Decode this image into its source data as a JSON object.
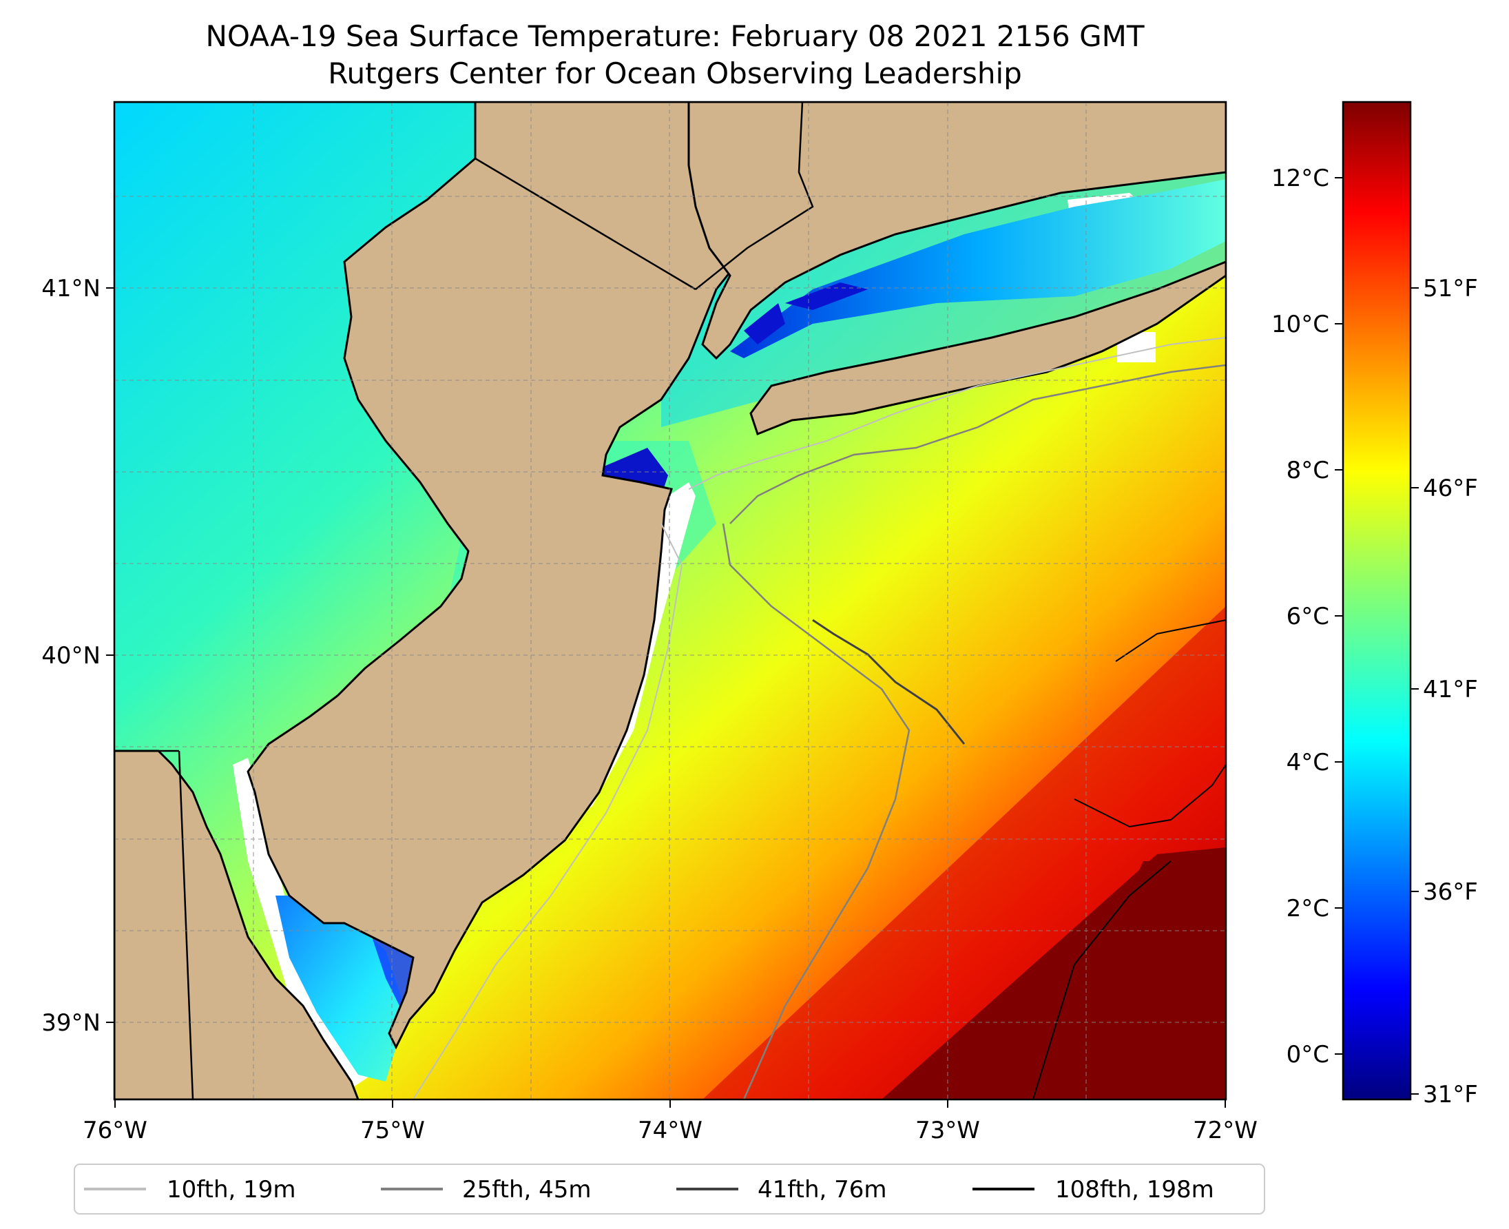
{
  "title": "NOAA-19 Sea Surface Temperature: February 08 2021 2156 GMT",
  "subtitle": "Rutgers Center for Ocean Observing Leadership",
  "map": {
    "lon_range": [
      -76,
      -72
    ],
    "lat_range": [
      38.73,
      41.52
    ],
    "lon_ticks": [
      "76°W",
      "75°W",
      "74°W",
      "73°W",
      "72°W"
    ],
    "lat_ticks": [
      "41°N",
      "40°N",
      "39°N"
    ],
    "grid": "dashed",
    "land_color": "#d2b48c",
    "nodata_color": "#ffffff"
  },
  "colorbar": {
    "colormap": "jet",
    "range_c": [
      -0.6,
      13
    ],
    "celsius_ticks": [
      "12°C",
      "10°C",
      "8°C",
      "6°C",
      "4°C",
      "2°C",
      "0°C"
    ],
    "fahrenheit_ticks": [
      "51°F",
      "46°F",
      "41°F",
      "36°F",
      "31°F"
    ]
  },
  "legend": {
    "placement": "bottom",
    "items": [
      {
        "label": "10fth, 19m",
        "color": "#bfbfbf"
      },
      {
        "label": "25fth, 45m",
        "color": "#808080"
      },
      {
        "label": "41fth, 76m",
        "color": "#404040"
      },
      {
        "label": "108fth, 198m",
        "color": "#000000"
      }
    ]
  }
}
